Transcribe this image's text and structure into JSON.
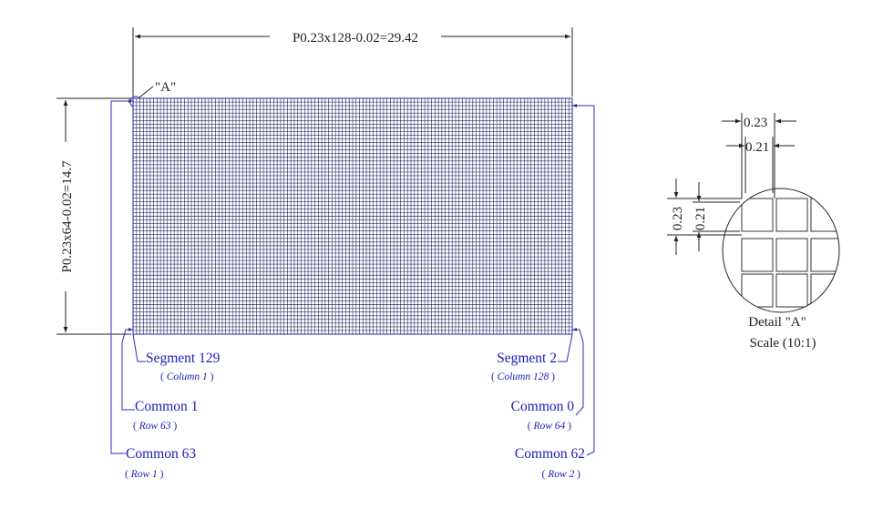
{
  "dimensions": {
    "width_label": "P0.23x128-0.02=29.42",
    "height_label": "P0.23x64-0.02=14.7",
    "detail_marker": "\"A\""
  },
  "grid": {
    "columns": 128,
    "rows": 64
  },
  "pins": {
    "segment_left": {
      "name": "Segment 129",
      "sub_pre": "( ",
      "sub": "Column 1",
      "sub_post": " )"
    },
    "segment_right": {
      "name": "Segment 2",
      "sub_pre": "( ",
      "sub": "Column 128",
      "sub_post": " )"
    },
    "common_left_1": {
      "name": "Common 1",
      "sub_pre": "( ",
      "sub": "Row 63",
      "sub_post": " )"
    },
    "common_right_1": {
      "name": "Common 0",
      "sub_pre": "( ",
      "sub": "Row 64",
      "sub_post": " )"
    },
    "common_left_2": {
      "name": "Common 63",
      "sub_pre": "( ",
      "sub": "Row 1",
      "sub_post": " )"
    },
    "common_right_2": {
      "name": "Common 62",
      "sub_pre": "( ",
      "sub": "Row 2",
      "sub_post": " )"
    }
  },
  "detail": {
    "pitch_label": "0.23",
    "width_label": "0.21",
    "title": "Detail \"A\"",
    "scale": "Scale (10:1)"
  },
  "colors": {
    "grid": "#1c1c5a",
    "outline": "#2a2aa8",
    "leader": "#2f2fb0",
    "dimension": "#222222",
    "label": "#1b1bb8"
  }
}
